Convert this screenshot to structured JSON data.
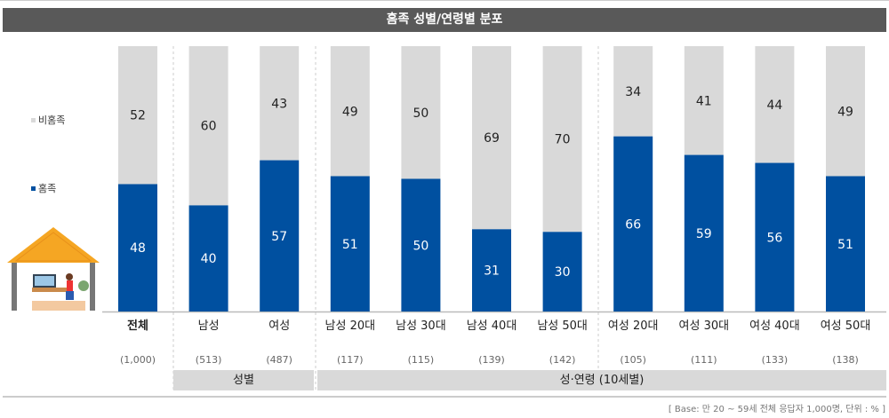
{
  "chart_data": {
    "type": "bar",
    "stacked": true,
    "title": "홈족 성별/연령별 분포",
    "categories": [
      "전체",
      "남성",
      "여성",
      "남성 20대",
      "남성 30대",
      "남성 40대",
      "남성 50대",
      "여성 20대",
      "여성 30대",
      "여성 40대",
      "여성 50대"
    ],
    "sample_sizes": [
      "(1,000)",
      "(513)",
      "(487)",
      "(117)",
      "(115)",
      "(139)",
      "(142)",
      "(105)",
      "(111)",
      "(133)",
      "(138)"
    ],
    "series": [
      {
        "name": "홈족",
        "color": "#0050a0",
        "values": [
          48,
          40,
          57,
          51,
          50,
          31,
          30,
          66,
          59,
          56,
          51
        ]
      },
      {
        "name": "비홈족",
        "color": "#d9d9d9",
        "values": [
          52,
          60,
          43,
          49,
          50,
          69,
          70,
          34,
          41,
          44,
          49
        ]
      }
    ],
    "groups": [
      {
        "label": "성별"
      },
      {
        "label": "성·연령 (10세별)"
      }
    ],
    "ylim": [
      0,
      100
    ],
    "grid": false,
    "legend": "left",
    "footnote": "[ Base: 만 20 ~ 59세 전체 응답자 1,000명, 단위 : % ]"
  }
}
